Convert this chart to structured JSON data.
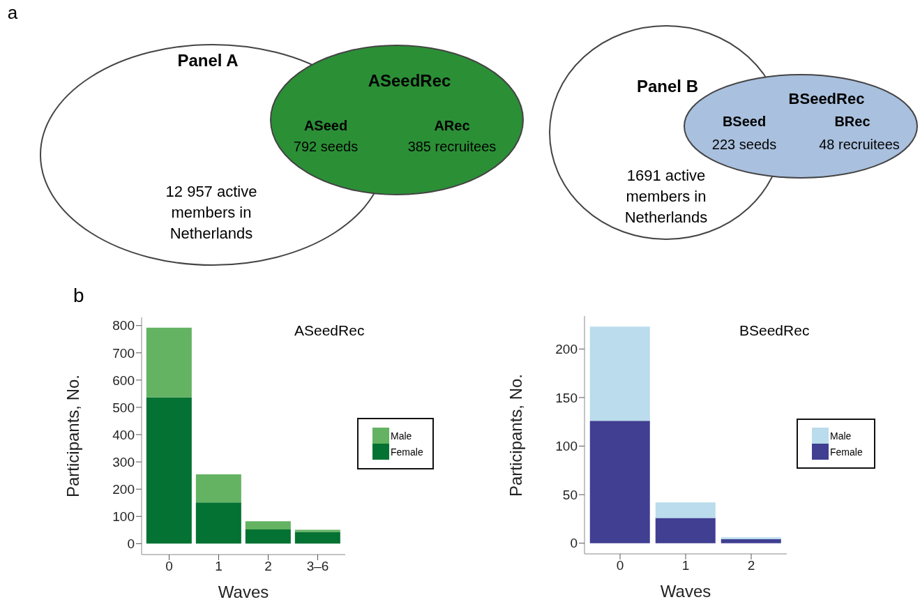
{
  "chart_data": [
    {
      "type": "other",
      "title": "Panel A",
      "colors": [
        "#ffffff",
        "#2b8f36"
      ],
      "annotations": [
        "a",
        "ASeedRec",
        "ASeed",
        "792 seeds",
        "ARec",
        "385 recruitees",
        "12 957 active members in Netherlands"
      ]
    },
    {
      "type": "other",
      "title": "Panel B",
      "colors": [
        "#ffffff",
        "#a9c0de"
      ],
      "annotations": [
        "BSeedRec",
        "BSeed",
        "223 seeds",
        "BRec",
        "48 recruitees",
        "1691 active members in Netherlands"
      ]
    },
    {
      "type": "bar",
      "stacked": true,
      "categories": [
        "0",
        "1",
        "2",
        "3–6"
      ],
      "xlabel": "Waves",
      "ylabel": "Participants, No.",
      "ylim": [
        -40,
        830
      ],
      "yticks": [
        0,
        100,
        200,
        300,
        400,
        500,
        600,
        700,
        800
      ],
      "legend": "right",
      "annotations": [
        "b",
        "ASeedRec"
      ],
      "series": [
        {
          "name": "Female",
          "color": "#037232",
          "values": [
            537,
            151,
            52,
            43
          ]
        },
        {
          "name": "Male",
          "color": "#63b362",
          "values": [
            255,
            103,
            30,
            8
          ]
        }
      ]
    },
    {
      "type": "bar",
      "stacked": true,
      "categories": [
        "0",
        "1",
        "2"
      ],
      "xlabel": "Waves",
      "ylabel": "Participants, No.",
      "ylim": [
        -11,
        234
      ],
      "yticks": [
        0,
        50,
        100,
        150,
        200
      ],
      "legend": "right",
      "annotations": [
        "BSeedRec"
      ],
      "series": [
        {
          "name": "Female",
          "color": "#403f92",
          "values": [
            126,
            26,
            4
          ]
        },
        {
          "name": "Male",
          "color": "#badcec",
          "values": [
            97,
            16,
            2
          ]
        }
      ]
    }
  ]
}
